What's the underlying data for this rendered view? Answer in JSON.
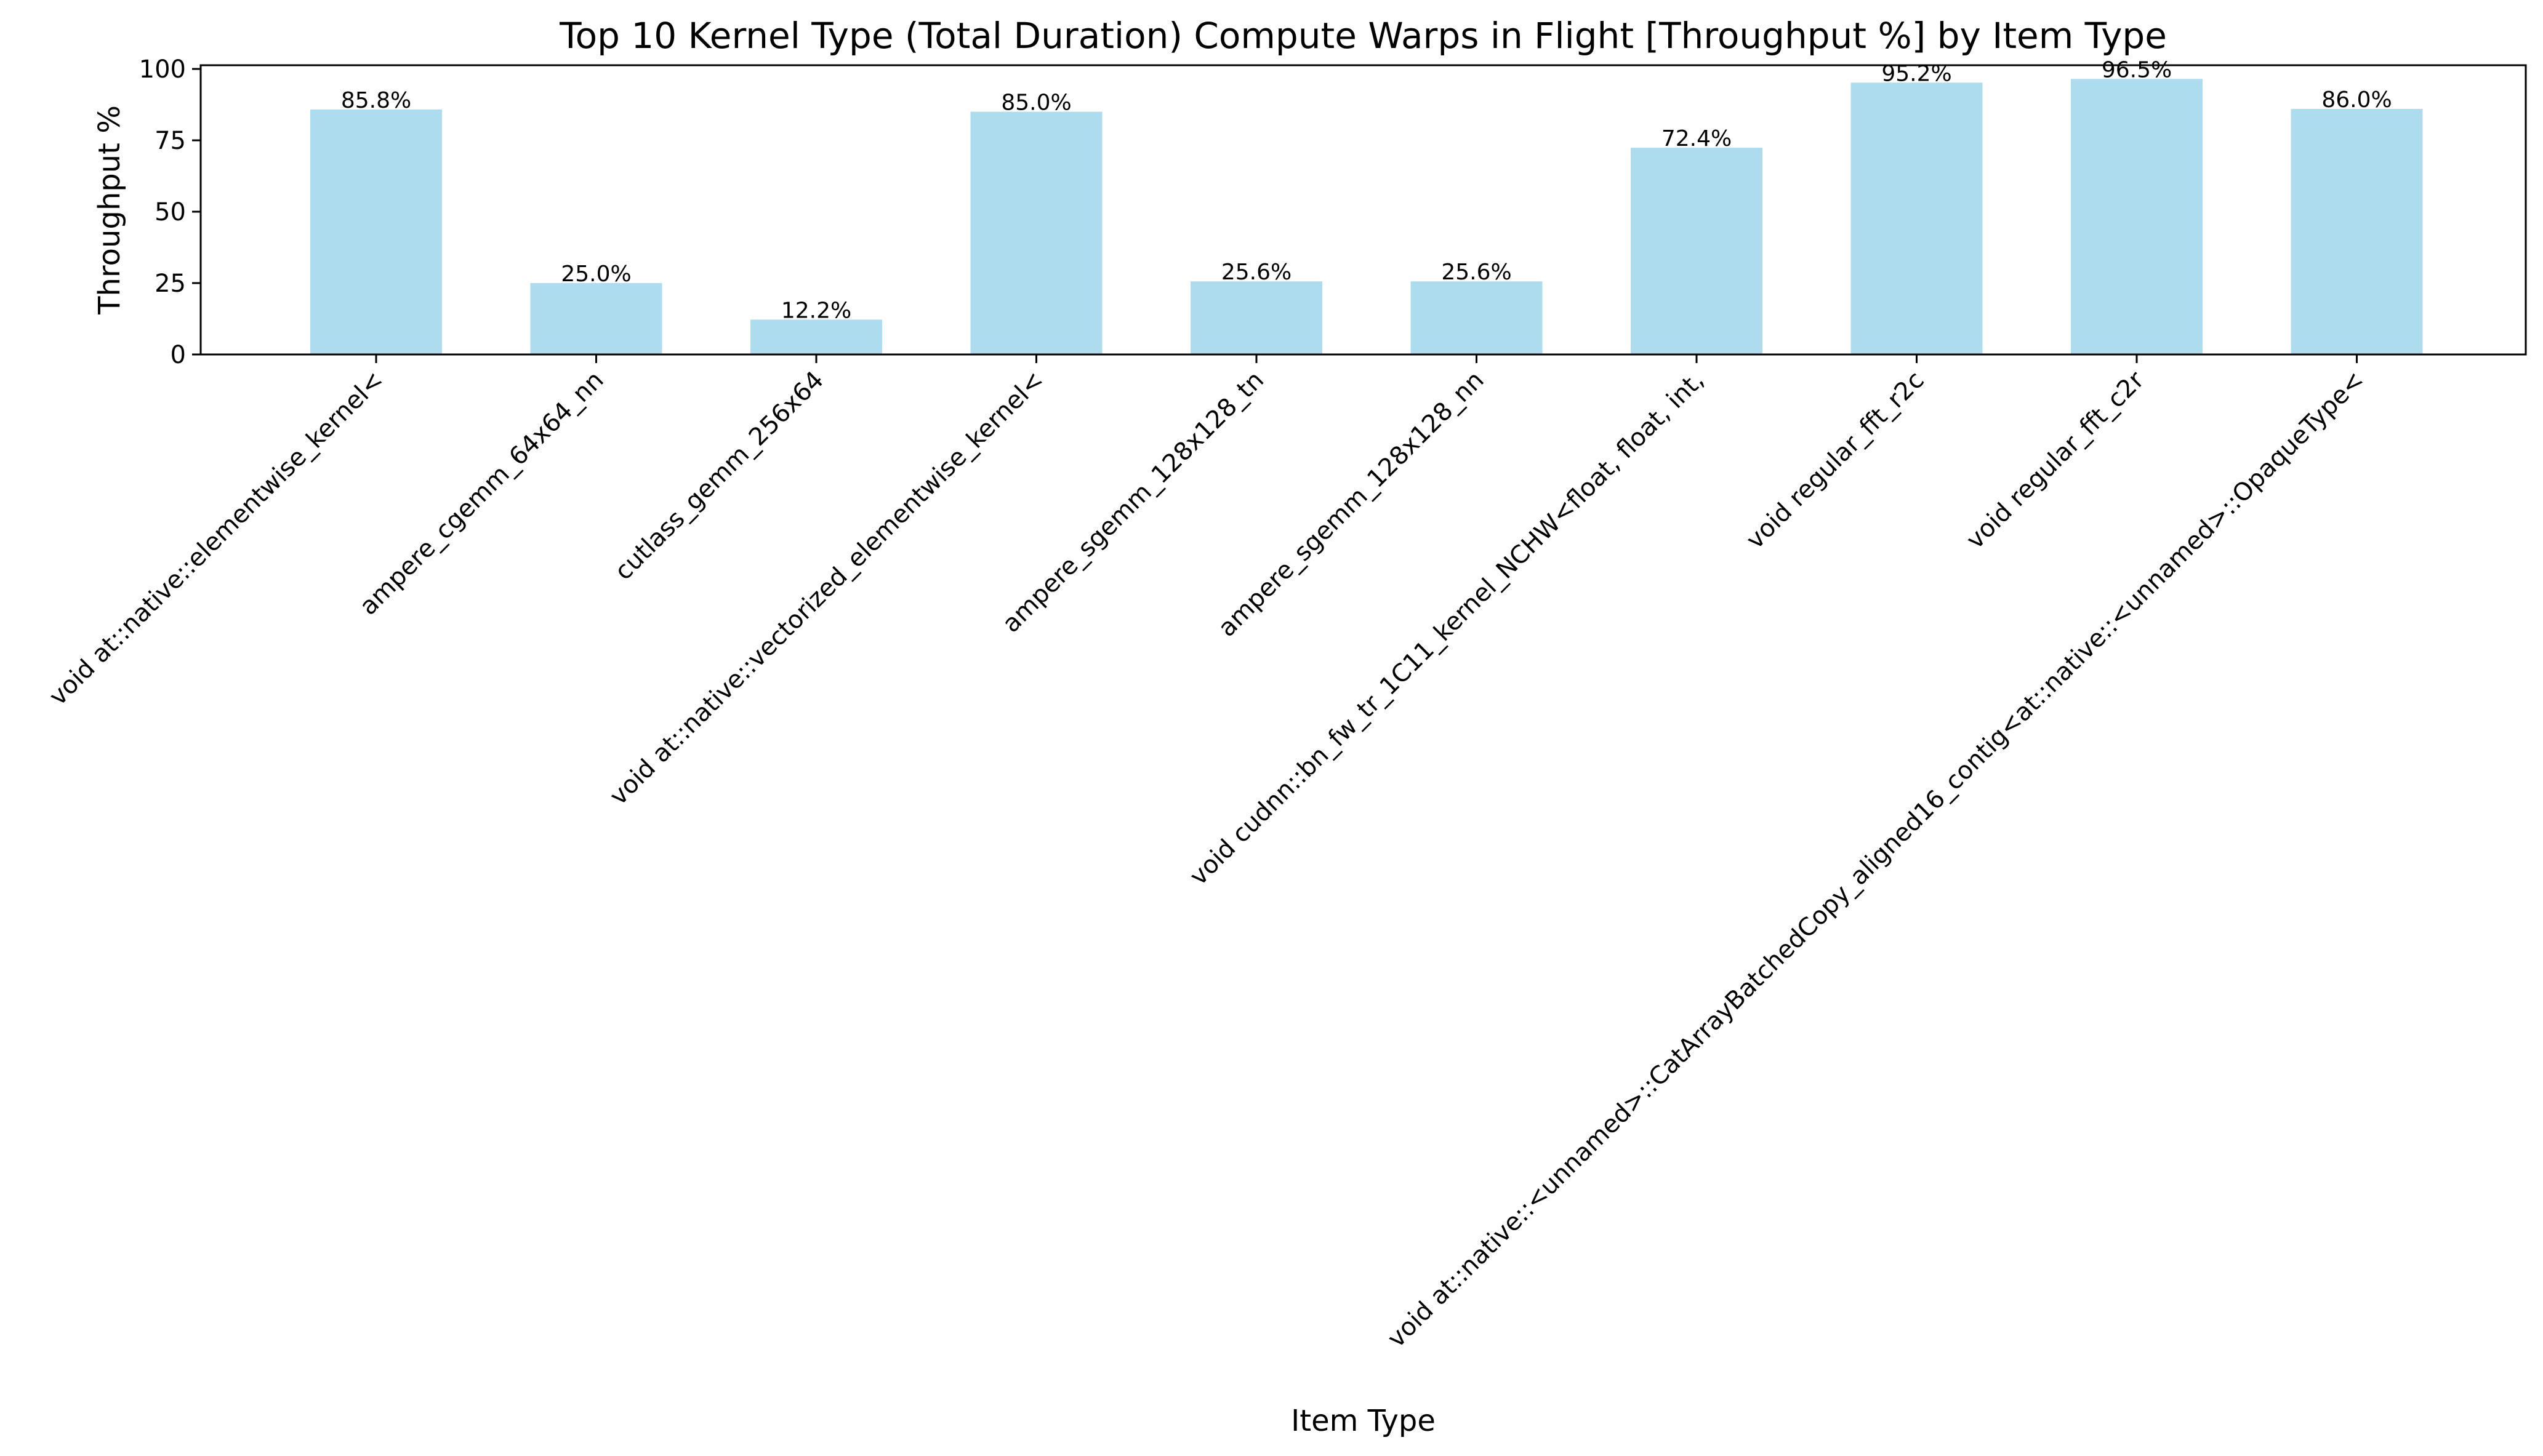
{
  "chart_data": {
    "type": "bar",
    "title": "Top 10 Kernel Type (Total Duration) Compute Warps in Flight [Throughput %] by Item Type",
    "xlabel": "Item Type",
    "ylabel": "Throughput %",
    "ylim": [
      0,
      101.3
    ],
    "yticks": [
      0,
      25,
      50,
      75,
      100
    ],
    "grid": false,
    "legend": "none",
    "bar_color": "#ADDCEE",
    "categories": [
      "void at::native::elementwise_kernel<",
      "ampere_cgemm_64x64_nn",
      "cutlass_gemm_256x64",
      "void at::native::vectorized_elementwise_kernel<",
      "ampere_sgemm_128x128_tn",
      "ampere_sgemm_128x128_nn",
      "void cudnn::bn_fw_tr_1C11_kernel_NCHW<float, float, int,",
      "void regular_fft_r2c",
      "void regular_fft_c2r",
      "void at::native::<unnamed>::CatArrayBatchedCopy_aligned16_contig<at::native::<unnamed>::OpaqueType<"
    ],
    "values": [
      85.8,
      25.0,
      12.2,
      85.0,
      25.6,
      25.6,
      72.4,
      95.2,
      96.5,
      86.0
    ],
    "value_labels": [
      "85.8%",
      "25.0%",
      "12.2%",
      "85.0%",
      "25.6%",
      "25.6%",
      "72.4%",
      "95.2%",
      "96.5%",
      "86.0%"
    ]
  }
}
